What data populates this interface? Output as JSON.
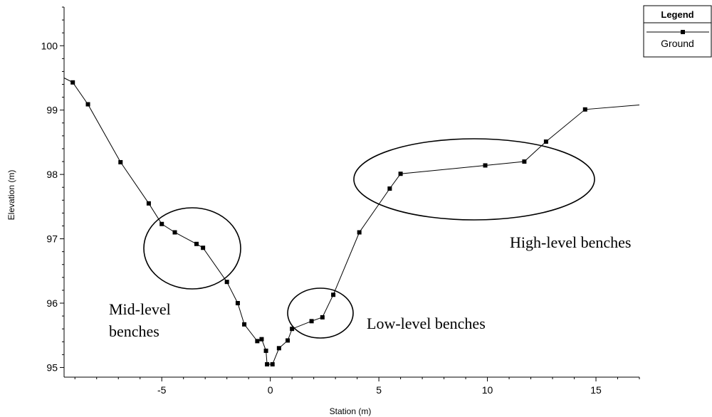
{
  "chart_data": {
    "type": "line",
    "xlabel": "Station (m)",
    "ylabel": "Elevation (m)",
    "xlim": [
      -9.5,
      17
    ],
    "ylim": [
      94.85,
      100.6
    ],
    "x_ticks": [
      -5,
      0,
      5,
      10,
      15
    ],
    "y_ticks": [
      95,
      96,
      97,
      98,
      99,
      100
    ],
    "x_tick_labels": [
      "-5",
      "0",
      "5",
      "10",
      "15"
    ],
    "y_tick_labels": [
      "95",
      "96",
      "97",
      "98",
      "99",
      "100"
    ],
    "grid": false,
    "legend": {
      "title": "Legend",
      "position": "top-right",
      "entries": [
        "Ground"
      ]
    },
    "series": [
      {
        "name": "Ground",
        "line_start": [
          -9.5,
          99.5
        ],
        "line_end": [
          17,
          99.08
        ],
        "points": [
          [
            -9.1,
            99.43
          ],
          [
            -8.4,
            99.09
          ],
          [
            -6.9,
            98.19
          ],
          [
            -5.6,
            97.55
          ],
          [
            -5.0,
            97.23
          ],
          [
            -4.4,
            97.1
          ],
          [
            -3.4,
            96.92
          ],
          [
            -3.1,
            96.86
          ],
          [
            -2.0,
            96.33
          ],
          [
            -1.5,
            96.0
          ],
          [
            -1.2,
            95.67
          ],
          [
            -0.6,
            95.41
          ],
          [
            -0.4,
            95.44
          ],
          [
            -0.2,
            95.26
          ],
          [
            -0.15,
            95.05
          ],
          [
            0.1,
            95.05
          ],
          [
            0.4,
            95.3
          ],
          [
            0.8,
            95.42
          ],
          [
            1.0,
            95.6
          ],
          [
            1.9,
            95.72
          ],
          [
            2.4,
            95.78
          ],
          [
            2.9,
            96.13
          ],
          [
            4.1,
            97.1
          ],
          [
            5.5,
            97.78
          ],
          [
            6.0,
            98.01
          ],
          [
            9.9,
            98.14
          ],
          [
            11.7,
            98.2
          ],
          [
            12.7,
            98.51
          ],
          [
            14.5,
            99.01
          ]
        ]
      }
    ],
    "annotations": [
      {
        "text": [
          "Mid-level",
          "benches"
        ]
      },
      {
        "text": [
          "Low-level benches"
        ]
      },
      {
        "text": [
          "High-level benches"
        ]
      }
    ]
  }
}
